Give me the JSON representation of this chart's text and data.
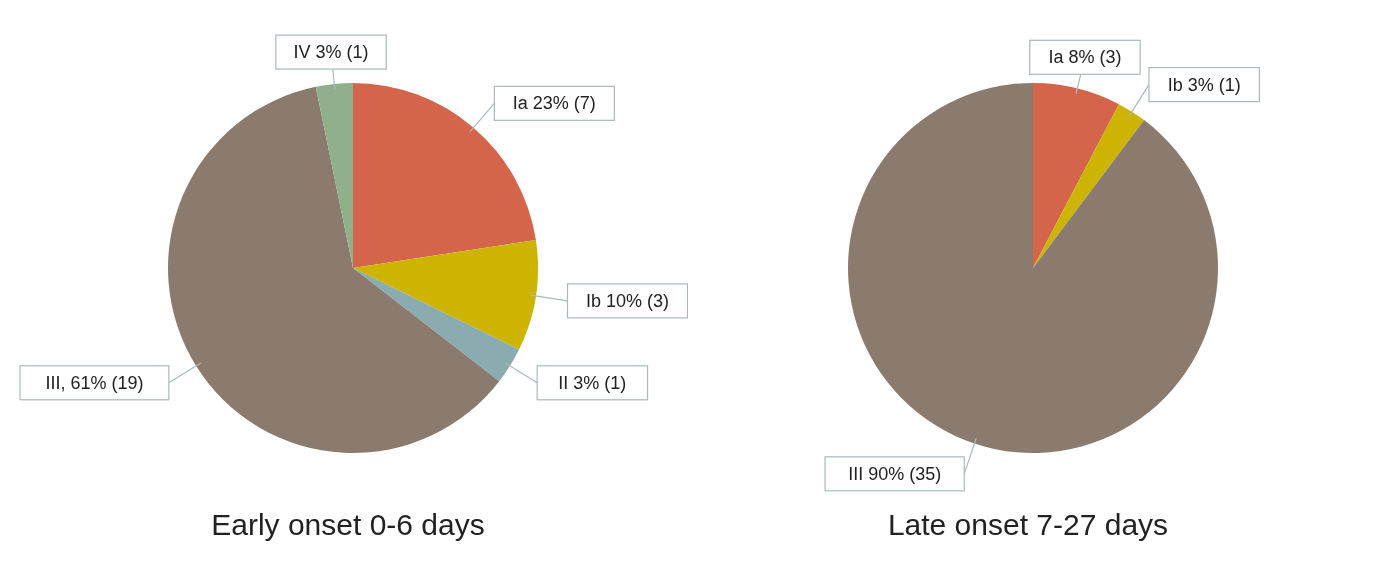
{
  "chart_data": [
    {
      "type": "pie",
      "title": "Early onset 0-6 days",
      "categories": [
        "Ia",
        "Ib",
        "II",
        "III",
        "IV"
      ],
      "values": [
        7,
        3,
        1,
        19,
        1
      ],
      "colors": [
        "#d4654a",
        "#ccb400",
        "#8aabaf",
        "#8b7b6e",
        "#8fb08a"
      ],
      "value_labels": [
        " 23% (7)",
        " 10% (3)",
        " 3% (1)",
        ", 61% (19)",
        " 3% (1)"
      ]
    },
    {
      "type": "pie",
      "title": "Late onset 7-27 days",
      "categories": [
        "Ia",
        "Ib",
        "III"
      ],
      "values": [
        3,
        1,
        35
      ],
      "colors": [
        "#d4654a",
        "#ccb400",
        "#8b7b6e"
      ],
      "value_labels": [
        " 8% (3)",
        " 3% (1)",
        " 90% (35)"
      ]
    }
  ]
}
